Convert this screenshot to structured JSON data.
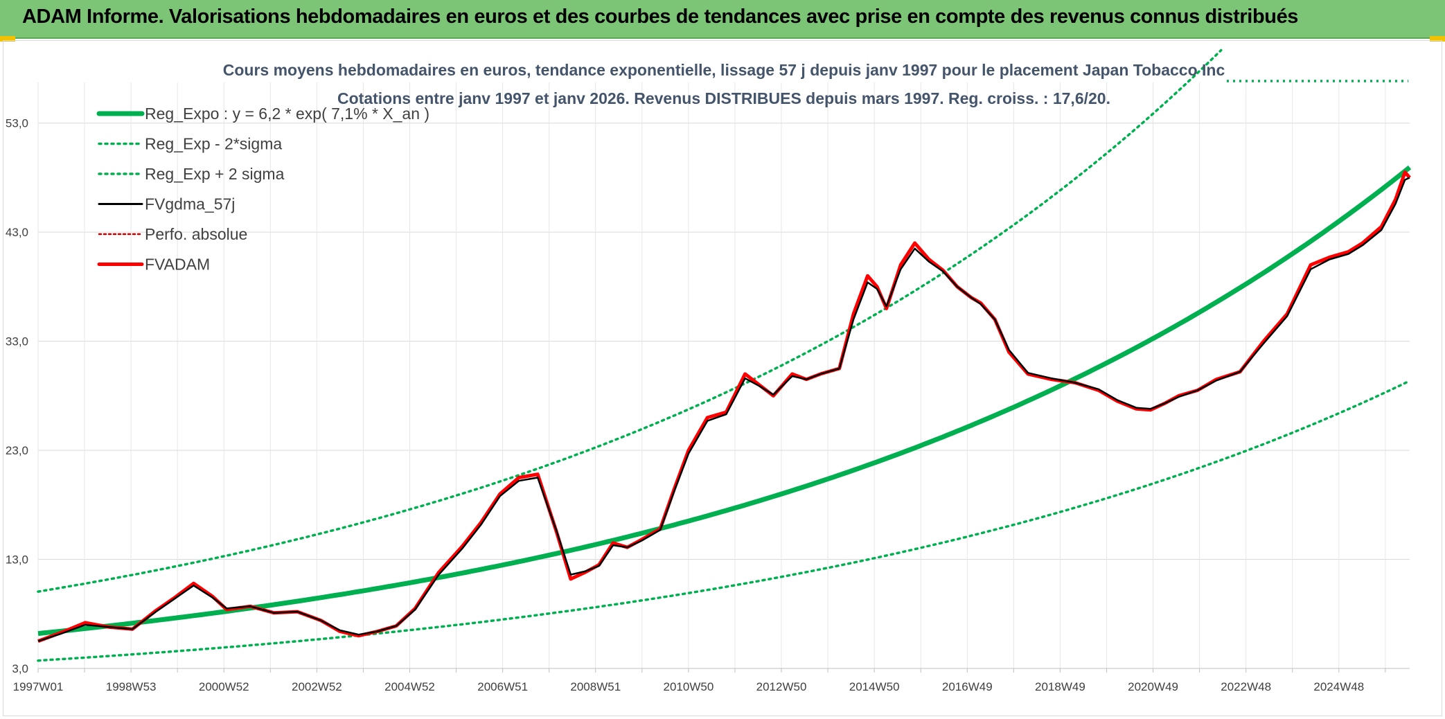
{
  "banner": {
    "title": "ADAM Informe. Valorisations hebdomadaires en euros et des courbes de tendances avec prise en compte des revenus connus distribués"
  },
  "colors": {
    "banner_bg": "#7cc576",
    "regression": "#00b050",
    "fvgdma": "#000000",
    "fvadam": "#ff0000",
    "perfo": "#c00000"
  },
  "chart_data": {
    "type": "line",
    "title": "Cours moyens hebdomadaires en euros, tendance exponentielle, lissage 57 j depuis janv 1997 pour le placement Japan Tobacco Inc",
    "subtitle": "Cotations entre janv 1997 et janv 2026. Revenus DISTRIBUES depuis mars 1997. Reg. croiss. : 17,6/20.",
    "xlabel": "",
    "ylabel": "",
    "ylim": [
      3,
      58
    ],
    "xlim": [
      1997.0,
      2026.1
    ],
    "grid": true,
    "legend_position": "top-left",
    "y_ticks": [
      "3,0",
      "13,0",
      "23,0",
      "33,0",
      "43,0",
      "53,0"
    ],
    "x_ticks": [
      "1997W01",
      "1998W53",
      "2000W52",
      "2002W52",
      "2004W52",
      "2006W51",
      "2008W51",
      "2010W50",
      "2012W50",
      "2014W50",
      "2016W49",
      "2018W49",
      "2020W49",
      "2022W48",
      "2024W48"
    ],
    "legend": [
      "Reg_Expo : y = 6,2 * exp( 7,1% *  X_an )",
      "Reg_Exp - 2*sigma",
      "Reg_Exp + 2 sigma",
      "FVgdma_57j",
      "Perfo. absolue",
      "FVADAM"
    ],
    "regression": {
      "a": 6.2,
      "rate": 0.071,
      "lower_factor": 0.6,
      "upper_factor": 1.62
    },
    "series": [
      {
        "name": "FVADAM",
        "x": [
          1997.0,
          1997.5,
          1998.0,
          1998.5,
          1999.0,
          1999.5,
          1999.9,
          2000.3,
          2000.7,
          2001.0,
          2001.5,
          2002.0,
          2002.5,
          2003.0,
          2003.4,
          2003.8,
          2004.2,
          2004.6,
          2005.0,
          2005.5,
          2006.0,
          2006.4,
          2006.8,
          2007.2,
          2007.6,
          2008.0,
          2008.3,
          2008.6,
          2008.9,
          2009.2,
          2009.5,
          2009.8,
          2010.2,
          2010.5,
          2010.8,
          2011.2,
          2011.6,
          2012.0,
          2012.3,
          2012.6,
          2013.0,
          2013.3,
          2013.6,
          2014.0,
          2014.3,
          2014.6,
          2014.8,
          2015.0,
          2015.3,
          2015.6,
          2015.9,
          2016.2,
          2016.5,
          2016.8,
          2017.0,
          2017.3,
          2017.6,
          2018.0,
          2018.5,
          2019.0,
          2019.5,
          2019.9,
          2020.3,
          2020.6,
          2020.9,
          2021.2,
          2021.6,
          2022.0,
          2022.5,
          2023.0,
          2023.5,
          2024.0,
          2024.4,
          2024.8,
          2025.1,
          2025.5,
          2025.8,
          2026.0,
          2026.1
        ],
        "y": [
          5.5,
          6.3,
          7.2,
          6.8,
          6.6,
          8.3,
          9.5,
          10.8,
          9.6,
          8.4,
          8.7,
          8.1,
          8.2,
          7.4,
          6.4,
          6.0,
          6.4,
          6.9,
          8.5,
          11.8,
          14.2,
          16.4,
          19.0,
          20.5,
          20.8,
          15.5,
          11.2,
          11.8,
          12.5,
          14.5,
          14.1,
          14.8,
          15.8,
          19.5,
          23.0,
          26.0,
          26.5,
          30.0,
          29.0,
          28.0,
          30.0,
          29.5,
          30.0,
          30.5,
          35.5,
          39.0,
          38.0,
          36.0,
          40.0,
          42.0,
          40.5,
          39.5,
          38.0,
          37.0,
          36.5,
          35.0,
          32.0,
          30.0,
          29.5,
          29.2,
          28.5,
          27.5,
          26.8,
          26.7,
          27.3,
          28.0,
          28.5,
          29.5,
          30.2,
          33.0,
          35.5,
          40.0,
          40.7,
          41.2,
          42.0,
          43.5,
          46.0,
          48.5,
          48.0
        ]
      },
      {
        "name": "FVgdma_57j",
        "x": [
          1997.0,
          1997.5,
          1998.0,
          1998.5,
          1999.0,
          1999.5,
          1999.9,
          2000.3,
          2000.7,
          2001.0,
          2001.5,
          2002.0,
          2002.5,
          2003.0,
          2003.4,
          2003.8,
          2004.2,
          2004.6,
          2005.0,
          2005.5,
          2006.0,
          2006.4,
          2006.8,
          2007.2,
          2007.6,
          2008.0,
          2008.3,
          2008.6,
          2008.9,
          2009.2,
          2009.5,
          2009.8,
          2010.2,
          2010.5,
          2010.8,
          2011.2,
          2011.6,
          2012.0,
          2012.3,
          2012.6,
          2013.0,
          2013.3,
          2013.6,
          2014.0,
          2014.3,
          2014.6,
          2014.8,
          2015.0,
          2015.3,
          2015.6,
          2015.9,
          2016.2,
          2016.5,
          2016.8,
          2017.0,
          2017.3,
          2017.6,
          2018.0,
          2018.5,
          2019.0,
          2019.5,
          2019.9,
          2020.3,
          2020.6,
          2020.9,
          2021.2,
          2021.6,
          2022.0,
          2022.5,
          2023.0,
          2023.5,
          2024.0,
          2024.4,
          2024.8,
          2025.1,
          2025.5,
          2025.8,
          2026.0,
          2026.1
        ],
        "y": [
          5.5,
          6.2,
          7.0,
          6.8,
          6.6,
          8.2,
          9.4,
          10.6,
          9.5,
          8.5,
          8.7,
          8.1,
          8.2,
          7.4,
          6.5,
          6.1,
          6.4,
          6.9,
          8.4,
          11.6,
          14.0,
          16.2,
          18.8,
          20.2,
          20.5,
          15.6,
          11.6,
          11.9,
          12.4,
          14.3,
          14.1,
          14.7,
          15.7,
          19.3,
          22.7,
          25.7,
          26.3,
          29.6,
          28.9,
          28.1,
          29.8,
          29.5,
          30.0,
          30.5,
          35.0,
          38.4,
          37.8,
          36.2,
          39.6,
          41.5,
          40.3,
          39.4,
          38.0,
          37.0,
          36.4,
          35.0,
          32.2,
          30.1,
          29.6,
          29.2,
          28.6,
          27.6,
          26.9,
          26.8,
          27.3,
          27.9,
          28.5,
          29.4,
          30.2,
          32.8,
          35.3,
          39.6,
          40.5,
          41.0,
          41.8,
          43.2,
          45.6,
          47.8,
          48.0
        ]
      }
    ]
  }
}
